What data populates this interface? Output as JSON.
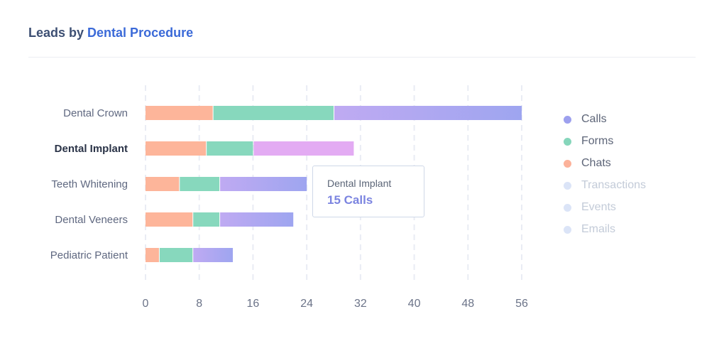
{
  "header": {
    "title_part1": "Leads by",
    "title_part2": "Dental Procedure"
  },
  "chart_data": {
    "type": "bar",
    "orientation": "horizontal",
    "stacked": true,
    "categories": [
      "Dental Crown",
      "Dental Implant",
      "Teeth Whitening",
      "Dental Veneers",
      "Pediatric Patient"
    ],
    "highlighted_category": "Dental Implant",
    "series": [
      {
        "name": "Chats",
        "color": "#fdb59a",
        "values": [
          10,
          9,
          5,
          7,
          2
        ]
      },
      {
        "name": "Forms",
        "color": "#87d8bd",
        "values": [
          18,
          7,
          6,
          4,
          5
        ]
      },
      {
        "name": "Calls",
        "color": "#a5a5f2",
        "values": [
          28,
          15,
          13,
          11,
          6
        ]
      }
    ],
    "xlim": [
      0,
      56
    ],
    "xticks": [
      "0",
      "8",
      "16",
      "24",
      "32",
      "40",
      "48",
      "56"
    ],
    "grid": "vertical dashed",
    "legend_placement": "right"
  },
  "legend": [
    {
      "label": "Calls",
      "color": "#9da0ee",
      "active": true
    },
    {
      "label": "Forms",
      "color": "#86d6bb",
      "active": true
    },
    {
      "label": "Chats",
      "color": "#fcb29a",
      "active": true
    },
    {
      "label": "Transactions",
      "color": "#dbe4f7",
      "active": false
    },
    {
      "label": "Events",
      "color": "#dbe4f7",
      "active": false
    },
    {
      "label": "Emails",
      "color": "#dbe4f7",
      "active": false
    }
  ],
  "tooltip": {
    "title": "Dental Implant",
    "value": "15 Calls"
  }
}
